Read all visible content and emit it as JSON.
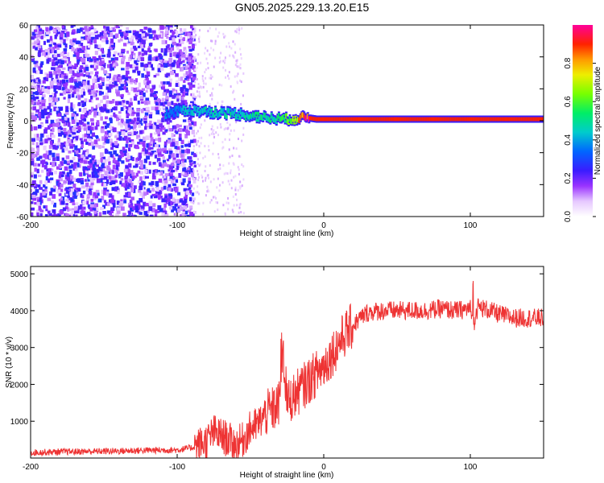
{
  "title": "GN05.2025.229.13.20.E15",
  "chart_data": [
    {
      "type": "heatmap",
      "xlabel": "Height of straight line (km)",
      "ylabel": "Frequency (Hz)",
      "xlim": [
        -200,
        150
      ],
      "ylim": [
        -60,
        60
      ],
      "xticks": [
        -200,
        -100,
        0,
        100
      ],
      "yticks": [
        -60,
        -40,
        -20,
        0,
        20,
        40,
        60
      ],
      "colorbar": {
        "label": "Normalized spectral amplitude",
        "range": [
          0,
          1
        ],
        "ticks": [
          0.0,
          0.2,
          0.4,
          0.6,
          0.8
        ]
      },
      "features": [
        {
          "x_range": [
            -200,
            -88
          ],
          "description_values": "broadband noise, amplitude ~0.1-0.3"
        },
        {
          "ridge": [
            [
              -108,
              4
            ],
            [
              -95,
              7
            ],
            [
              -85,
              6
            ],
            [
              -70,
              5
            ],
            [
              -55,
              4
            ],
            [
              -40,
              2
            ],
            [
              -25,
              1
            ],
            [
              -12,
              2
            ],
            [
              -5,
              1
            ],
            [
              150,
              1
            ]
          ]
        }
      ],
      "ridge_points": [
        {
          "x": -108,
          "y": 4,
          "amp": 0.35
        },
        {
          "x": -95,
          "y": 7,
          "amp": 0.4
        },
        {
          "x": -85,
          "y": 6,
          "amp": 0.45
        },
        {
          "x": -70,
          "y": 5,
          "amp": 0.45
        },
        {
          "x": -55,
          "y": 4,
          "amp": 0.45
        },
        {
          "x": -40,
          "y": 2,
          "amp": 0.5
        },
        {
          "x": -25,
          "y": 1,
          "amp": 0.55
        },
        {
          "x": -12,
          "y": 2,
          "amp": 0.9
        },
        {
          "x": -5,
          "y": 1,
          "amp": 0.9
        },
        {
          "x": 150,
          "y": 1,
          "amp": 0.9
        }
      ]
    },
    {
      "type": "line",
      "xlabel": "Height of straight line (km)",
      "ylabel": "SNR (10 * v/v)",
      "xlim": [
        -200,
        150
      ],
      "ylim": [
        0,
        5200
      ],
      "xticks": [
        -200,
        -100,
        0,
        100
      ],
      "yticks": [
        1000,
        2000,
        3000,
        4000,
        5000
      ],
      "series": [
        {
          "color": "#ee3333",
          "x": [
            -200,
            -180,
            -160,
            -140,
            -120,
            -100,
            -90,
            -80,
            -75,
            -70,
            -65,
            -60,
            -55,
            -50,
            -45,
            -40,
            -35,
            -30,
            -28,
            -25,
            -20,
            -15,
            -10,
            -5,
            0,
            5,
            10,
            15,
            20,
            25,
            30,
            40,
            50,
            60,
            70,
            80,
            90,
            100,
            102,
            105,
            110,
            120,
            130,
            140,
            150
          ],
          "values": [
            150,
            170,
            180,
            190,
            210,
            220,
            280,
            450,
            700,
            600,
            500,
            350,
            500,
            800,
            900,
            1200,
            1300,
            1500,
            2900,
            1500,
            1700,
            1900,
            2100,
            2300,
            2500,
            2800,
            3100,
            3400,
            3600,
            3800,
            3950,
            4000,
            4000,
            4000,
            4000,
            4050,
            4000,
            4050,
            3600,
            4100,
            4050,
            3900,
            3800,
            3800,
            3800
          ]
        }
      ]
    }
  ]
}
